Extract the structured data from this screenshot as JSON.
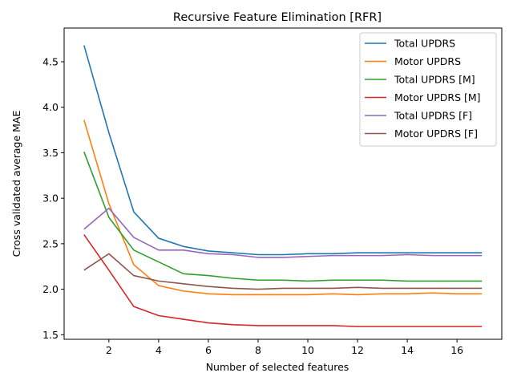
{
  "chart_data": {
    "type": "line",
    "title": "Recursive Feature Elimination [RFR]",
    "xlabel": "Number of selected features",
    "ylabel": "Cross validated average MAE",
    "x": [
      1,
      2,
      3,
      4,
      5,
      6,
      7,
      8,
      9,
      10,
      11,
      12,
      13,
      14,
      15,
      16,
      17
    ],
    "xlim": [
      0.2,
      17.8
    ],
    "ylim": [
      1.45,
      4.87
    ],
    "xticks": [
      2,
      4,
      6,
      8,
      10,
      12,
      14,
      16
    ],
    "yticks": [
      1.5,
      2.0,
      2.5,
      3.0,
      3.5,
      4.0,
      4.5
    ],
    "ytick_labels": [
      "1.5",
      "2.0",
      "2.5",
      "3.0",
      "3.5",
      "4.0",
      "4.5"
    ],
    "grid": false,
    "legend_position": "top-right",
    "series": [
      {
        "name": "Total UPDRS",
        "color": "#1f77b4",
        "values": [
          4.68,
          3.72,
          2.85,
          2.56,
          2.47,
          2.42,
          2.4,
          2.38,
          2.38,
          2.39,
          2.39,
          2.4,
          2.4,
          2.4,
          2.4,
          2.4,
          2.4
        ]
      },
      {
        "name": "Motor UPDRS",
        "color": "#ff7f0e",
        "values": [
          3.86,
          2.94,
          2.27,
          2.04,
          1.98,
          1.95,
          1.94,
          1.94,
          1.94,
          1.94,
          1.95,
          1.94,
          1.95,
          1.95,
          1.96,
          1.95,
          1.95
        ]
      },
      {
        "name": "Total UPDRS [M]",
        "color": "#2ca02c",
        "values": [
          3.51,
          2.79,
          2.43,
          2.3,
          2.17,
          2.15,
          2.12,
          2.1,
          2.1,
          2.09,
          2.1,
          2.1,
          2.1,
          2.09,
          2.09,
          2.09,
          2.09
        ]
      },
      {
        "name": "Motor UPDRS [M]",
        "color": "#d62728",
        "values": [
          2.6,
          2.21,
          1.81,
          1.71,
          1.67,
          1.63,
          1.61,
          1.6,
          1.6,
          1.6,
          1.6,
          1.59,
          1.59,
          1.59,
          1.59,
          1.59,
          1.59
        ]
      },
      {
        "name": "Total UPDRS [F]",
        "color": "#9467bd",
        "values": [
          2.66,
          2.89,
          2.57,
          2.43,
          2.43,
          2.39,
          2.38,
          2.35,
          2.35,
          2.36,
          2.37,
          2.37,
          2.37,
          2.38,
          2.37,
          2.37,
          2.37
        ]
      },
      {
        "name": "Motor UPDRS [F]",
        "color": "#8c564b",
        "values": [
          2.21,
          2.39,
          2.15,
          2.09,
          2.06,
          2.03,
          2.01,
          2.0,
          2.01,
          2.01,
          2.01,
          2.02,
          2.01,
          2.01,
          2.01,
          2.01,
          2.01
        ]
      }
    ]
  }
}
